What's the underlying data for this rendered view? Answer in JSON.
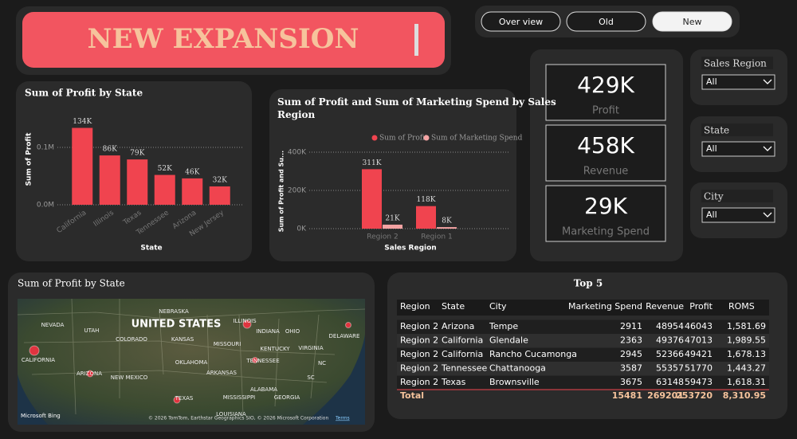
{
  "header": {
    "title": "NEW EXPANSION"
  },
  "nav": {
    "buttons": [
      "Over view",
      "Old",
      "New"
    ]
  },
  "chart_data": [
    {
      "type": "bar",
      "title": "Sum of Profit by State",
      "y_label": "Sum of Profit",
      "x_label": "State",
      "categories": [
        "California",
        "Illinois",
        "Texas",
        "Tennessee",
        "Arizona",
        "New Jersey"
      ],
      "values": [
        134000,
        86000,
        79000,
        52000,
        46000,
        32000
      ],
      "value_labels": [
        "134K",
        "86K",
        "79K",
        "52K",
        "46K",
        "32K"
      ],
      "color": "#f0444f",
      "ylim": [
        0,
        150000
      ],
      "yticks": [
        {
          "value": 0,
          "label": "0.0M"
        },
        {
          "value": 100000,
          "label": "0.1M"
        }
      ],
      "grid": true
    },
    {
      "type": "grouped_bar",
      "title": "Sum of Profit and Sum of Marketing Spend by Sales Region",
      "y_label": "Sum of Profit and Su...",
      "x_label": "Sales Region",
      "categories": [
        "Region 2",
        "Region 1"
      ],
      "series": [
        {
          "name": "Sum of Profit",
          "color": "#f0444f",
          "values": [
            311000,
            118000
          ],
          "value_labels": [
            "311K",
            "118K"
          ]
        },
        {
          "name": "Sum of Marketing Spend",
          "color": "#f4a3a3",
          "values": [
            21000,
            8000
          ],
          "value_labels": [
            "21K",
            "8K"
          ]
        }
      ],
      "ylim": [
        0,
        400000
      ],
      "yticks": [
        {
          "value": 0,
          "label": "0K"
        },
        {
          "value": 200000,
          "label": "200K"
        },
        {
          "value": 400000,
          "label": "400K"
        }
      ],
      "grid": true
    }
  ],
  "kpis": [
    {
      "value": "429K",
      "label": "Profit"
    },
    {
      "value": "458K",
      "label": "Revenue"
    },
    {
      "value": "29K",
      "label": "Marketing Spend"
    }
  ],
  "slicers": [
    {
      "label": "Sales Region",
      "value": "All"
    },
    {
      "label": "State",
      "value": "All"
    },
    {
      "label": "City",
      "value": "All"
    }
  ],
  "map": {
    "title": "Sum of Profit by State",
    "country": "UNITED STATES",
    "labels": [
      "NEBRASKA",
      "NEVADA",
      "UTAH",
      "ILLINOIS",
      "INDIANA",
      "OHIO",
      "DELAWARE",
      "COLORADO",
      "KANSAS",
      "MISSOURI",
      "KENTUCKY",
      "VIRGINIA",
      "CALIFORNIA",
      "OKLAHOMA",
      "TENNESSEE",
      "NC",
      "ARIZONA",
      "NEW MEXICO",
      "ARKANSAS",
      "SC",
      "ALABAMA",
      "MISSISSIPPI",
      "GEORGIA",
      "TEXAS",
      "LOUISIANA"
    ],
    "provider": "Microsoft Bing",
    "copyright": "© 2026 TomTom, Earthstar Geographics SIO, © 2026 Microsoft Corporation",
    "terms": "Terms"
  },
  "table": {
    "title": "Top 5",
    "columns": [
      "Region",
      "State",
      "City",
      "Marketing Spend",
      "Revenue",
      "Profit",
      "ROMS"
    ],
    "rows": [
      [
        "Region 2",
        "Arizona",
        "Tempe",
        2911,
        48954,
        46043,
        "1,581.69"
      ],
      [
        "Region 2",
        "California",
        "Glendale",
        2363,
        49376,
        47013,
        "1,989.55"
      ],
      [
        "Region 2",
        "California",
        "Rancho Cucamonga",
        2945,
        52366,
        49421,
        "1,678.13"
      ],
      [
        "Region 2",
        "Tennessee",
        "Chattanooga",
        3587,
        55357,
        51770,
        "1,443.27"
      ],
      [
        "Region 2",
        "Texas",
        "Brownsville",
        3675,
        63148,
        59473,
        "1,618.31"
      ]
    ],
    "total": {
      "label": "Total",
      "values": [
        15481,
        269201,
        253720,
        "8,310.95"
      ]
    }
  }
}
